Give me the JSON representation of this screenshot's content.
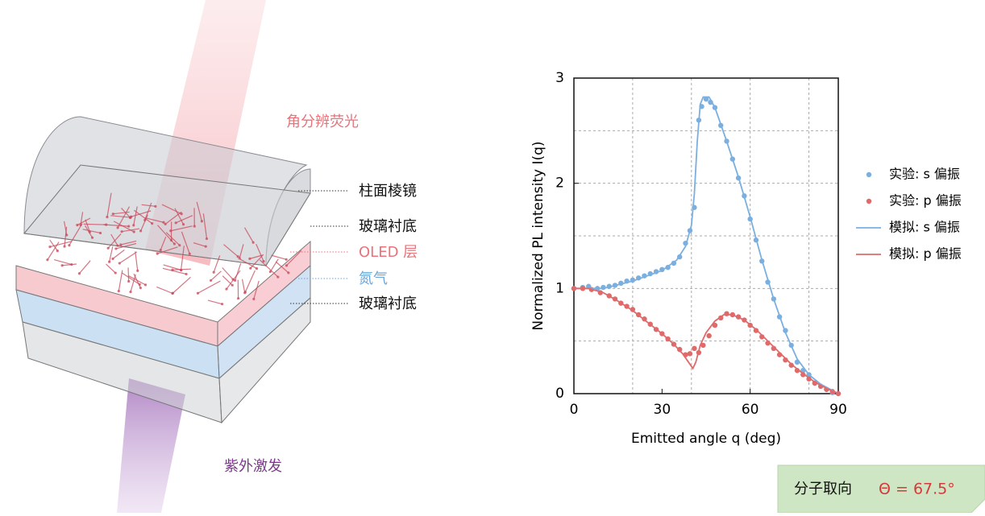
{
  "diagram": {
    "labels": [
      {
        "text": "角分辨荧光",
        "color": "#e8737a"
      },
      {
        "text": "柱面棱镜",
        "color": "#111111"
      },
      {
        "text": "玻璃衬底",
        "color": "#111111"
      },
      {
        "text": "OLED 层",
        "color": "#e8737a"
      },
      {
        "text": "氮气",
        "color": "#6aa6d8"
      },
      {
        "text": "玻璃衬底",
        "color": "#111111"
      },
      {
        "text": "紫外激发",
        "color": "#7d3a8c"
      }
    ]
  },
  "badge": {
    "label": "分子取向",
    "value": "Θ = 67.5°"
  },
  "chart_data": {
    "type": "scatter",
    "x_label": "Emitted angle q (deg)",
    "y_label": "Normalized PL intensity I(q)",
    "xlim": [
      0,
      90
    ],
    "xticks": [
      0,
      30,
      60,
      90
    ],
    "x_grid": [
      20,
      40,
      60,
      80
    ],
    "ylim": [
      0,
      3
    ],
    "yticks": [
      0,
      1,
      2,
      3
    ],
    "y_grid": [
      0.5,
      1,
      1.5,
      2,
      2.5
    ],
    "grid": true,
    "legend": "right",
    "series": [
      {
        "name": "实验: s 偏振",
        "type": "scatter",
        "color": "#7aafe0",
        "x": [
          0,
          3,
          5,
          8,
          10,
          12,
          14,
          16,
          18,
          20,
          22,
          24,
          26,
          28,
          30,
          32,
          34,
          36,
          38,
          39.5,
          41,
          42.5,
          43.5,
          45,
          46.5,
          48,
          50,
          52,
          54,
          56,
          58,
          60,
          62,
          64,
          66,
          68,
          70,
          72,
          74,
          76,
          78,
          80,
          82,
          84,
          86,
          88
        ],
        "values": [
          1.0,
          1.01,
          1.02,
          1.0,
          1.01,
          1.02,
          1.03,
          1.05,
          1.07,
          1.08,
          1.1,
          1.12,
          1.14,
          1.16,
          1.18,
          1.2,
          1.24,
          1.3,
          1.43,
          1.55,
          1.77,
          2.6,
          2.73,
          2.8,
          2.77,
          2.72,
          2.55,
          2.4,
          2.23,
          2.05,
          1.88,
          1.66,
          1.46,
          1.26,
          1.06,
          0.9,
          0.73,
          0.6,
          0.46,
          0.3,
          0.22,
          0.18,
          0.1,
          0.07,
          0.04,
          0.01
        ]
      },
      {
        "name": "实验: p 偏振",
        "type": "scatter",
        "color": "#e06a6a",
        "x": [
          0,
          3,
          6,
          9,
          12,
          14,
          16,
          18,
          20,
          22,
          24,
          26,
          28,
          30,
          32,
          34,
          36,
          38,
          39.5,
          41,
          42.5,
          44,
          46,
          48,
          50,
          52,
          54,
          56,
          58,
          60,
          62,
          64,
          66,
          68,
          70,
          72,
          74,
          76,
          78,
          80,
          82,
          84,
          86,
          88,
          90
        ],
        "values": [
          1.0,
          1.0,
          0.99,
          0.96,
          0.93,
          0.9,
          0.86,
          0.83,
          0.8,
          0.75,
          0.71,
          0.66,
          0.61,
          0.57,
          0.52,
          0.47,
          0.42,
          0.37,
          0.38,
          0.43,
          0.39,
          0.46,
          0.55,
          0.65,
          0.72,
          0.76,
          0.75,
          0.73,
          0.7,
          0.65,
          0.6,
          0.54,
          0.48,
          0.43,
          0.37,
          0.32,
          0.27,
          0.22,
          0.18,
          0.14,
          0.1,
          0.07,
          0.04,
          0.02,
          0.0
        ]
      },
      {
        "name": "模拟: s 偏振",
        "type": "line",
        "color": "#7aafe0",
        "x": [
          0,
          10,
          20,
          30,
          35,
          38,
          40,
          41,
          42,
          43,
          44,
          46,
          48,
          52,
          56,
          60,
          64,
          68,
          72,
          76,
          80,
          84,
          88,
          90
        ],
        "values": [
          1.0,
          1.0,
          1.07,
          1.17,
          1.27,
          1.4,
          1.6,
          1.9,
          2.4,
          2.75,
          2.82,
          2.82,
          2.72,
          2.4,
          2.06,
          1.68,
          1.27,
          0.9,
          0.58,
          0.33,
          0.18,
          0.09,
          0.03,
          0.0
        ]
      },
      {
        "name": "模拟: p 偏振",
        "type": "line",
        "color": "#e06a6a",
        "x": [
          0,
          5,
          10,
          15,
          20,
          25,
          30,
          34,
          37,
          39,
          40.5,
          41.5,
          43,
          45,
          48,
          51,
          54,
          58,
          62,
          66,
          70,
          74,
          78,
          82,
          86,
          90
        ],
        "values": [
          1.0,
          1.0,
          0.96,
          0.88,
          0.79,
          0.68,
          0.57,
          0.47,
          0.38,
          0.3,
          0.24,
          0.3,
          0.46,
          0.58,
          0.69,
          0.75,
          0.75,
          0.7,
          0.61,
          0.5,
          0.39,
          0.28,
          0.19,
          0.11,
          0.05,
          0.0
        ]
      }
    ]
  }
}
